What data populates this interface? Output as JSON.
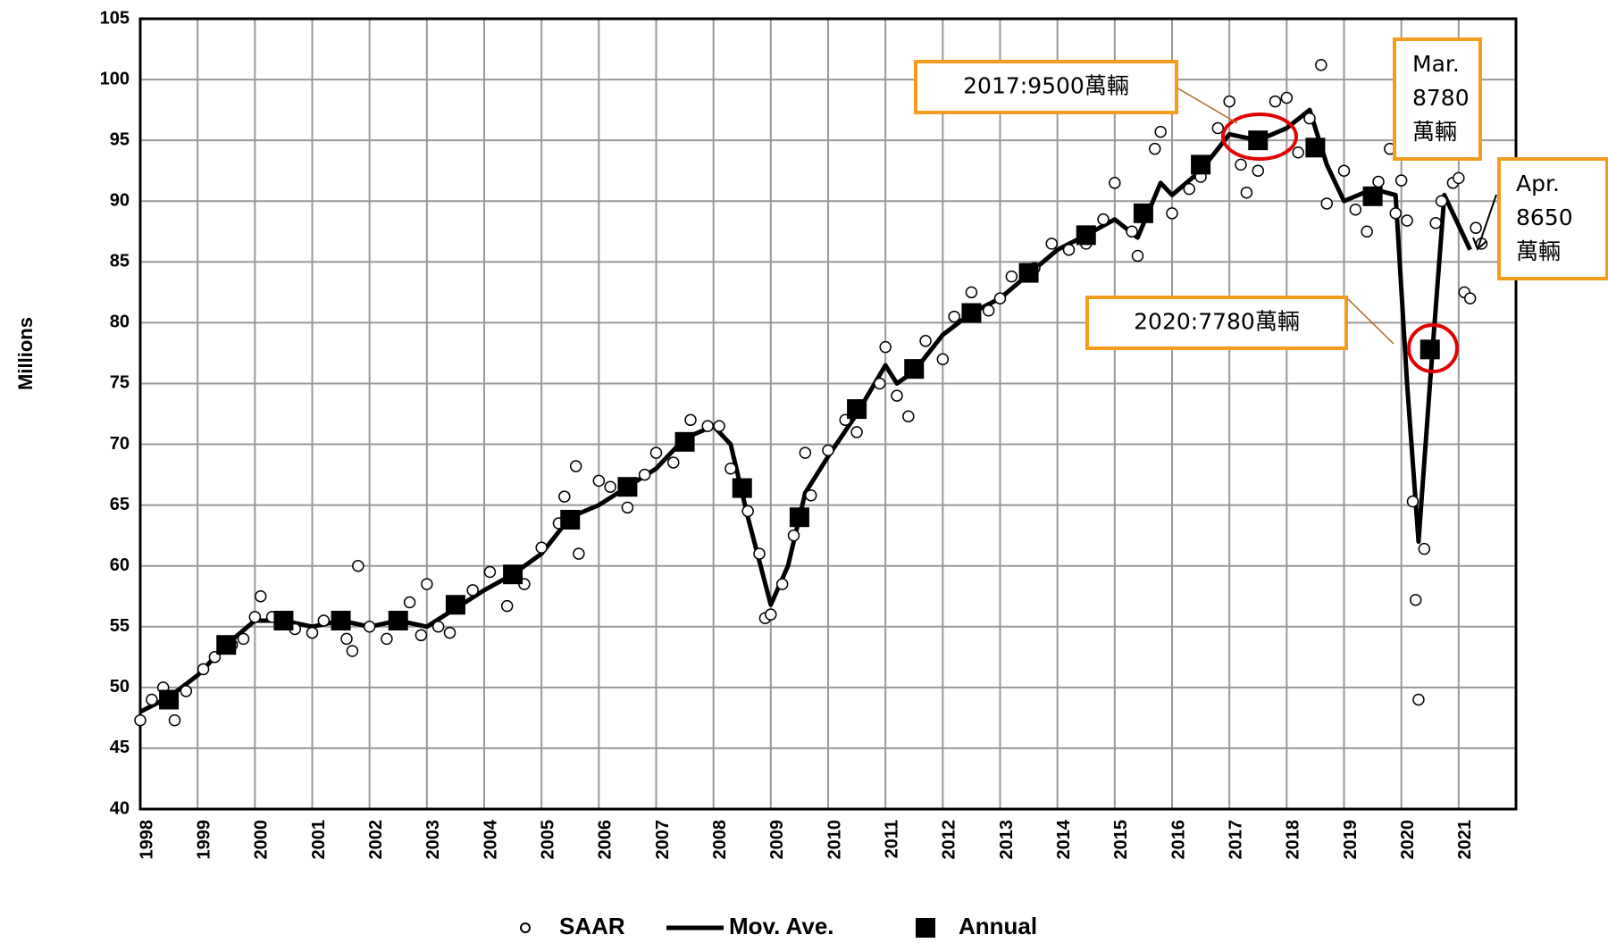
{
  "chart_data": {
    "type": "line",
    "ylabel": "Millions",
    "xlim": [
      1998,
      2022
    ],
    "ylim": [
      40,
      105
    ],
    "xticks": [
      1998,
      1999,
      2000,
      2001,
      2002,
      2003,
      2004,
      2005,
      2006,
      2007,
      2008,
      2009,
      2010,
      2011,
      2012,
      2013,
      2014,
      2015,
      2016,
      2017,
      2018,
      2019,
      2020,
      2021
    ],
    "yticks": [
      40,
      45,
      50,
      55,
      60,
      65,
      70,
      75,
      80,
      85,
      90,
      95,
      100,
      105
    ],
    "grid": true,
    "legend": "bottom",
    "series": [
      {
        "name": "SAAR",
        "marker": "circle",
        "color": "#000000",
        "x": [
          1998,
          1998.2,
          1998.4,
          1998.6,
          1998.8,
          1999.1,
          1999.3,
          1999.6,
          1999.8,
          2000,
          2000.1,
          2000.3,
          2000.7,
          2001,
          2001.2,
          2001.6,
          2001.7,
          2001.8,
          2002,
          2002.3,
          2002.7,
          2002.9,
          2003,
          2003.2,
          2003.4,
          2003.8,
          2004.1,
          2004.4,
          2004.7,
          2005,
          2005.3,
          2005.4,
          2005.6,
          2005.65,
          2006,
          2006.2,
          2006.5,
          2006.8,
          2007,
          2007.3,
          2007.6,
          2007.9,
          2008.1,
          2008.3,
          2008.6,
          2008.8,
          2008.9,
          2009,
          2009.2,
          2009.4,
          2009.6,
          2009.7,
          2010,
          2010.3,
          2010.5,
          2010.9,
          2011,
          2011.2,
          2011.4,
          2011.7,
          2012,
          2012.2,
          2012.5,
          2012.8,
          2013,
          2013.2,
          2013.6,
          2013.9,
          2014.2,
          2014.5,
          2014.8,
          2015,
          2015.3,
          2015.4,
          2015.7,
          2015.8,
          2016,
          2016.3,
          2016.5,
          2016.8,
          2017,
          2017.2,
          2017.3,
          2017.5,
          2017.8,
          2018,
          2018.2,
          2018.4,
          2018.6,
          2018.7,
          2019,
          2019.2,
          2019.4,
          2019.6,
          2019.8,
          2019.9,
          2020,
          2020.1,
          2020.2,
          2020.25,
          2020.3,
          2020.4,
          2020.6,
          2020.7,
          2020.9,
          2021,
          2021.1,
          2021.2,
          2021.3,
          2021.4
        ],
        "values": [
          47.3,
          49,
          50,
          47.3,
          49.7,
          51.5,
          52.5,
          53.5,
          54,
          55.8,
          57.5,
          55.8,
          54.8,
          54.5,
          55.5,
          54,
          53,
          60,
          55,
          54,
          57,
          54.3,
          58.5,
          55,
          54.5,
          58,
          59.5,
          56.7,
          58.5,
          61.5,
          63.5,
          65.7,
          68.2,
          61,
          67,
          66.5,
          64.8,
          67.5,
          69.3,
          68.5,
          72,
          71.5,
          71.5,
          68,
          64.5,
          61,
          55.7,
          56,
          58.5,
          62.5,
          69.3,
          65.8,
          69.5,
          72,
          71,
          75,
          78,
          74,
          72.3,
          78.5,
          77,
          80.5,
          82.5,
          81,
          82,
          83.8,
          84.5,
          86.5,
          86,
          86.5,
          88.5,
          91.5,
          87.5,
          85.5,
          94.3,
          95.7,
          89,
          91,
          92,
          96,
          98.2,
          93,
          90.7,
          92.5,
          98.2,
          98.5,
          94,
          96.8,
          101.2,
          89.8,
          92.5,
          89.3,
          87.5,
          91.6,
          94.3,
          89,
          91.7,
          88.4,
          65.3,
          57.2,
          49,
          61.4,
          88.2,
          90,
          91.5,
          91.9,
          82.5,
          82,
          87.8,
          86.5
        ]
      },
      {
        "name": "Mov. Ave.",
        "marker": "line",
        "color": "#000000",
        "x": [
          1998,
          1998.5,
          1999,
          1999.5,
          2000,
          2000.5,
          2001,
          2001.5,
          2002,
          2002.5,
          2003,
          2003.5,
          2004,
          2004.5,
          2005,
          2005.5,
          2006,
          2006.5,
          2007,
          2007.5,
          2008,
          2008.3,
          2008.6,
          2009,
          2009.3,
          2009.6,
          2010,
          2010.5,
          2011,
          2011.2,
          2011.5,
          2012,
          2012.5,
          2013,
          2013.5,
          2014,
          2014.5,
          2015,
          2015.4,
          2015.8,
          2016,
          2016.5,
          2017,
          2017.5,
          2018,
          2018.4,
          2018.7,
          2019,
          2019.5,
          2019.9,
          2020.1,
          2020.3,
          2020.5,
          2020.75,
          2021,
          2021.2
        ],
        "values": [
          48,
          49.2,
          51,
          53.5,
          55.5,
          55.5,
          55,
          55.5,
          55,
          55.5,
          55,
          56.5,
          58,
          59.3,
          61,
          64,
          65,
          66.5,
          68,
          70.5,
          71.5,
          70,
          64,
          56.8,
          60,
          66,
          69,
          72.5,
          76.5,
          75,
          76,
          79,
          80.8,
          82,
          84,
          86,
          87.2,
          88.5,
          87,
          91.5,
          90.5,
          92.5,
          95.5,
          95,
          96,
          97.5,
          93,
          90,
          91,
          90.5,
          75,
          62,
          75,
          90.5,
          88,
          86
        ]
      },
      {
        "name": "Annual",
        "marker": "square",
        "color": "#000000",
        "x": [
          1998.5,
          1999.5,
          2000.5,
          2001.5,
          2002.5,
          2003.5,
          2004.5,
          2005.5,
          2006.5,
          2007.5,
          2008.5,
          2009.5,
          2010.5,
          2011.5,
          2012.5,
          2013.5,
          2014.5,
          2015.5,
          2016.5,
          2017.5,
          2018.5,
          2019.5,
          2020.5
        ],
        "values": [
          49,
          53.5,
          55.5,
          55.5,
          55.5,
          56.8,
          59.3,
          63.8,
          66.5,
          70.2,
          66.4,
          64,
          72.9,
          76.2,
          80.8,
          84.1,
          87.2,
          89,
          93,
          95,
          94.4,
          90.4,
          77.8
        ]
      }
    ],
    "annotations": [
      {
        "lines": [
          "2017:9500萬輛"
        ]
      },
      {
        "lines": [
          "2020:7780萬輛"
        ]
      },
      {
        "lines": [
          "Mar.",
          "8780",
          "萬輛"
        ]
      },
      {
        "lines": [
          "Apr.",
          "8650",
          "萬輛"
        ]
      }
    ]
  }
}
